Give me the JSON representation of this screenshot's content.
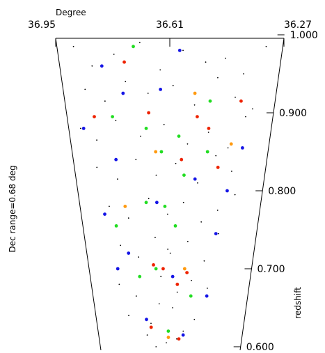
{
  "chart_data": {
    "type": "scatter",
    "xlabel": "Degree",
    "ylabel": "Dec range=0.68 deg",
    "y2label": "redshift",
    "xlim": [
      36.95,
      36.27
    ],
    "xticks": [
      36.95,
      36.61,
      36.27
    ],
    "ylim": [
      0.59,
      1.0
    ],
    "yticks": [
      {
        "value": 1.0,
        "label": "1.000"
      },
      {
        "value": 0.9,
        "label": "0.900"
      },
      {
        "value": 0.8,
        "label": "0.800"
      },
      {
        "value": 0.7,
        "label": "0.700"
      },
      {
        "value": 0.6,
        "label": "0.600"
      }
    ],
    "series": [
      {
        "color": "#000000",
        "x": [
          36.9,
          36.85,
          36.78,
          36.7,
          36.64,
          36.57,
          36.5,
          36.44,
          36.38,
          36.32,
          36.88,
          36.82,
          36.75,
          36.68,
          36.6,
          36.53,
          36.46,
          36.4,
          36.34,
          36.91,
          36.86,
          36.79,
          36.71,
          36.63,
          36.55,
          36.48,
          36.41,
          36.36,
          36.87,
          36.8,
          36.73,
          36.66,
          36.59,
          36.51,
          36.45,
          36.39,
          36.84,
          36.77,
          36.69,
          36.62,
          36.56,
          36.49,
          36.43,
          36.37,
          36.81,
          36.74,
          36.67,
          36.61,
          36.54,
          36.47,
          36.42,
          36.83,
          36.76,
          36.65,
          36.58,
          36.52,
          36.45,
          36.8,
          36.7,
          36.6,
          36.5,
          36.72,
          36.63,
          36.55,
          36.68,
          36.58,
          36.66,
          36.62
        ],
        "values": [
          0.985,
          0.96,
          0.975,
          0.99,
          0.955,
          0.98,
          0.965,
          0.97,
          0.95,
          0.985,
          0.93,
          0.915,
          0.94,
          0.925,
          0.935,
          0.91,
          0.945,
          0.92,
          0.905,
          0.88,
          0.865,
          0.89,
          0.87,
          0.885,
          0.86,
          0.875,
          0.855,
          0.895,
          0.83,
          0.815,
          0.84,
          0.82,
          0.835,
          0.81,
          0.845,
          0.825,
          0.78,
          0.765,
          0.79,
          0.77,
          0.785,
          0.76,
          0.775,
          0.795,
          0.73,
          0.715,
          0.74,
          0.72,
          0.735,
          0.71,
          0.745,
          0.68,
          0.665,
          0.69,
          0.67,
          0.685,
          0.675,
          0.64,
          0.63,
          0.65,
          0.635,
          0.615,
          0.605,
          0.62,
          0.6,
          0.61,
          0.655,
          0.725
        ]
      },
      {
        "color": "#1515e6",
        "x": [
          36.82,
          36.58,
          36.9,
          36.76,
          36.64,
          36.36,
          36.8,
          36.52,
          36.4,
          36.86,
          36.66,
          36.43,
          36.83,
          36.78,
          36.6,
          36.45,
          36.72,
          36.55
        ],
        "values": [
          0.96,
          0.98,
          0.88,
          0.925,
          0.93,
          0.855,
          0.84,
          0.815,
          0.8,
          0.77,
          0.785,
          0.745,
          0.7,
          0.72,
          0.69,
          0.665,
          0.635,
          0.615
        ]
      },
      {
        "color": "#22dd22",
        "x": [
          36.72,
          36.48,
          36.8,
          36.69,
          36.58,
          36.64,
          36.48,
          36.56,
          36.7,
          36.82,
          36.63,
          36.59,
          36.67,
          36.52,
          36.74,
          36.62
        ],
        "values": [
          0.985,
          0.915,
          0.895,
          0.88,
          0.87,
          0.85,
          0.85,
          0.82,
          0.785,
          0.755,
          0.78,
          0.755,
          0.7,
          0.665,
          0.69,
          0.62
        ]
      },
      {
        "color": "#ff9a10",
        "x": [
          36.53,
          36.4,
          36.66,
          36.78,
          36.55,
          36.7,
          36.62
        ],
        "values": [
          0.925,
          0.86,
          0.85,
          0.78,
          0.7,
          0.625,
          0.612
        ]
      },
      {
        "color": "#ee2200",
        "x": [
          36.75,
          36.38,
          36.86,
          36.68,
          36.52,
          36.48,
          36.57,
          36.44,
          36.64,
          36.68,
          36.58,
          36.54,
          36.7,
          36.57
        ],
        "values": [
          0.965,
          0.915,
          0.895,
          0.9,
          0.895,
          0.88,
          0.84,
          0.83,
          0.7,
          0.705,
          0.68,
          0.695,
          0.625,
          0.61
        ]
      }
    ]
  }
}
